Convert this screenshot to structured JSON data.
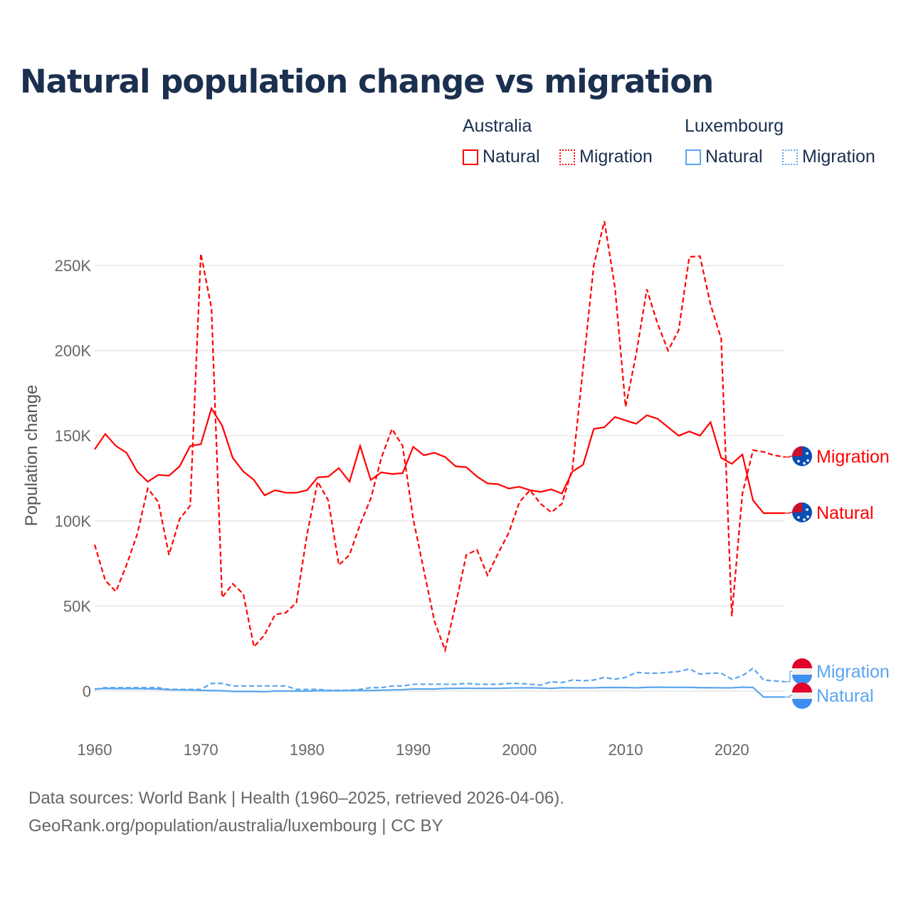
{
  "chart_data": {
    "type": "line",
    "title": "Natural population change vs migration",
    "ylabel": "Population change",
    "xlabel": "",
    "ylim": [
      -10000,
      290000
    ],
    "xlim": [
      1960,
      2025
    ],
    "yticks": [
      {
        "v": 0,
        "label": "0"
      },
      {
        "v": 50000,
        "label": "50K"
      },
      {
        "v": 100000,
        "label": "100K"
      },
      {
        "v": 150000,
        "label": "150K"
      },
      {
        "v": 200000,
        "label": "200K"
      },
      {
        "v": 250000,
        "label": "250K"
      }
    ],
    "xticks": [
      1960,
      1970,
      1980,
      1990,
      2000,
      2010,
      2020
    ],
    "grid": true,
    "years": [
      1960,
      1961,
      1962,
      1963,
      1964,
      1965,
      1966,
      1967,
      1968,
      1969,
      1970,
      1971,
      1972,
      1973,
      1974,
      1975,
      1976,
      1977,
      1978,
      1979,
      1980,
      1981,
      1982,
      1983,
      1984,
      1985,
      1986,
      1987,
      1988,
      1989,
      1990,
      1991,
      1992,
      1993,
      1994,
      1995,
      1996,
      1997,
      1998,
      1999,
      2000,
      2001,
      2002,
      2003,
      2004,
      2005,
      2006,
      2007,
      2008,
      2009,
      2010,
      2011,
      2012,
      2013,
      2014,
      2015,
      2016,
      2017,
      2018,
      2019,
      2020,
      2021,
      2022,
      2023,
      2024,
      2025
    ],
    "series": [
      {
        "name": "Migration",
        "country": "Australia",
        "color": "#ff0000",
        "dash": true,
        "values": [
          86000,
          65000,
          58500,
          74000,
          92000,
          119000,
          111000,
          80000,
          101000,
          109000,
          257000,
          225000,
          55000,
          63000,
          57000,
          26000,
          33000,
          45000,
          46000,
          52000,
          92000,
          123000,
          112000,
          74000,
          80000,
          98000,
          113000,
          137000,
          154000,
          144000,
          101000,
          71000,
          41000,
          24000,
          51000,
          80000,
          83000,
          68000,
          81000,
          93000,
          111000,
          118000,
          110000,
          105000,
          110000,
          131000,
          190000,
          250000,
          276000,
          237000,
          167000,
          198000,
          236000,
          216000,
          200000,
          212000,
          255000,
          255500,
          227000,
          207000,
          44000,
          116000,
          141500,
          140500,
          138500,
          137500
        ]
      },
      {
        "name": "Natural",
        "country": "Australia",
        "color": "#ff0000",
        "dash": false,
        "values": [
          142000,
          151000,
          144000,
          140000,
          129000,
          123000,
          127000,
          126500,
          132000,
          144000,
          145000,
          166000,
          156000,
          137000,
          129000,
          124000,
          115000,
          118000,
          116500,
          116500,
          118000,
          125500,
          126000,
          131000,
          123000,
          144000,
          124000,
          128500,
          127500,
          128000,
          143500,
          138500,
          140000,
          137500,
          132000,
          131500,
          126000,
          122000,
          121500,
          119000,
          120000,
          118000,
          117000,
          118500,
          116000,
          129000,
          133000,
          154000,
          155000,
          161000,
          159000,
          157000,
          162000,
          160000,
          155000,
          150000,
          152500,
          150000,
          158000,
          137000,
          133500,
          139000,
          112000,
          104500,
          104500,
          104500
        ]
      },
      {
        "name": "Migration",
        "country": "Luxembourg",
        "color": "#5aa5ee",
        "dash": true,
        "values": [
          1000,
          2000,
          2000,
          2000,
          2000,
          2000,
          2000,
          1000,
          1000,
          1000,
          1000,
          4500,
          4500,
          3000,
          3000,
          3000,
          3000,
          3000,
          3000,
          1000,
          1000,
          1000,
          500,
          500,
          500,
          1000,
          2000,
          2000,
          3000,
          3000,
          4000,
          4000,
          4000,
          4000,
          4000,
          4500,
          4000,
          4000,
          4000,
          4500,
          4500,
          4000,
          3500,
          5500,
          5000,
          6500,
          6000,
          6500,
          8000,
          7000,
          8000,
          11000,
          10500,
          10500,
          11000,
          11500,
          13000,
          10000,
          10500,
          10500,
          7000,
          9000,
          13500,
          6500,
          6000,
          5500
        ]
      },
      {
        "name": "Natural",
        "country": "Luxembourg",
        "color": "#5aa5ee",
        "dash": false,
        "values": [
          1200,
          1500,
          1400,
          1400,
          1400,
          1300,
          1200,
          800,
          700,
          600,
          400,
          300,
          200,
          -200,
          -200,
          -200,
          -400,
          0,
          0,
          0,
          0,
          200,
          200,
          200,
          300,
          300,
          300,
          500,
          700,
          800,
          1200,
          1200,
          1200,
          1500,
          1600,
          1700,
          1600,
          1600,
          1600,
          1800,
          1900,
          1900,
          1800,
          1600,
          2000,
          1900,
          1900,
          1900,
          2100,
          2100,
          2100,
          1900,
          2200,
          2300,
          2200,
          2200,
          2200,
          2000,
          2000,
          1900,
          1900,
          2300,
          2100,
          -3500,
          -3500,
          -3500
        ]
      }
    ]
  },
  "legend": {
    "groups": [
      {
        "label": "Australia",
        "items": [
          "Natural",
          "Migration"
        ]
      },
      {
        "label": "Luxembourg",
        "items": [
          "Natural",
          "Migration"
        ]
      }
    ]
  },
  "end_labels": {
    "au_migration": "Migration",
    "au_natural": "Natural",
    "lu_migration": "Migration",
    "lu_natural": "Natural"
  },
  "source": {
    "line1": "Data sources: World Bank | Health (1960–2025, retrieved 2026-04-06).",
    "line2": "GeoRank.org/population/australia/luxembourg | CC BY"
  }
}
